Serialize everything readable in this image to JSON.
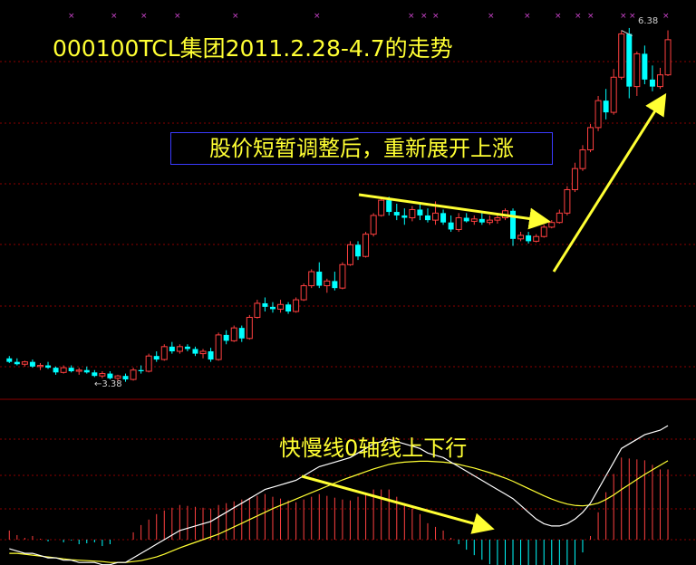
{
  "title": "000100TCL集团2011.2.28-4.7的走势",
  "annotation_trend": "股价短暂调整后，重新展开上涨",
  "annotation_macd": "快慢线0轴线上下行",
  "price_high_label": "6.38",
  "price_low_label": "←3.38",
  "colors": {
    "background": "#000000",
    "up": "#ff4040",
    "down": "#00ffff",
    "text": "#ffff33",
    "grid": "#8b0000",
    "macd_fast": "#ffffff",
    "macd_slow": "#ffff33",
    "markers": "#cc44cc"
  },
  "chart_data": {
    "type": "candlestick",
    "series": [
      {
        "name": "price",
        "candles": [
          [
            3.58,
            3.6,
            3.54,
            3.55
          ],
          [
            3.55,
            3.58,
            3.52,
            3.53
          ],
          [
            3.53,
            3.56,
            3.51,
            3.55
          ],
          [
            3.55,
            3.57,
            3.5,
            3.51
          ],
          [
            3.51,
            3.54,
            3.48,
            3.52
          ],
          [
            3.52,
            3.55,
            3.49,
            3.5
          ],
          [
            3.5,
            3.51,
            3.44,
            3.46
          ],
          [
            3.46,
            3.52,
            3.45,
            3.5
          ],
          [
            3.5,
            3.52,
            3.46,
            3.47
          ],
          [
            3.47,
            3.5,
            3.44,
            3.48
          ],
          [
            3.48,
            3.51,
            3.45,
            3.46
          ],
          [
            3.46,
            3.48,
            3.42,
            3.43
          ],
          [
            3.43,
            3.47,
            3.41,
            3.45
          ],
          [
            3.45,
            3.47,
            3.4,
            3.41
          ],
          [
            3.41,
            3.44,
            3.39,
            3.43
          ],
          [
            3.43,
            3.45,
            3.38,
            3.4
          ],
          [
            3.4,
            3.5,
            3.39,
            3.48
          ],
          [
            3.48,
            3.52,
            3.45,
            3.47
          ],
          [
            3.47,
            3.62,
            3.46,
            3.6
          ],
          [
            3.6,
            3.64,
            3.55,
            3.57
          ],
          [
            3.57,
            3.7,
            3.56,
            3.68
          ],
          [
            3.68,
            3.72,
            3.62,
            3.64
          ],
          [
            3.64,
            3.7,
            3.62,
            3.68
          ],
          [
            3.68,
            3.7,
            3.64,
            3.66
          ],
          [
            3.66,
            3.68,
            3.6,
            3.62
          ],
          [
            3.62,
            3.66,
            3.58,
            3.64
          ],
          [
            3.64,
            3.67,
            3.55,
            3.57
          ],
          [
            3.57,
            3.8,
            3.56,
            3.78
          ],
          [
            3.78,
            3.82,
            3.7,
            3.73
          ],
          [
            3.73,
            3.86,
            3.72,
            3.84
          ],
          [
            3.84,
            3.86,
            3.72,
            3.75
          ],
          [
            3.75,
            3.95,
            3.74,
            3.93
          ],
          [
            3.93,
            4.08,
            3.92,
            4.05
          ],
          [
            4.05,
            4.1,
            3.98,
            4.02
          ],
          [
            4.02,
            4.06,
            3.97,
            4.0
          ],
          [
            4.0,
            4.08,
            3.97,
            4.04
          ],
          [
            4.04,
            4.06,
            3.96,
            3.98
          ],
          [
            3.98,
            4.1,
            3.97,
            4.08
          ],
          [
            4.08,
            4.22,
            4.07,
            4.2
          ],
          [
            4.2,
            4.34,
            4.18,
            4.32
          ],
          [
            4.32,
            4.4,
            4.18,
            4.2
          ],
          [
            4.2,
            4.26,
            4.14,
            4.24
          ],
          [
            4.24,
            4.32,
            4.16,
            4.18
          ],
          [
            4.18,
            4.4,
            4.17,
            4.38
          ],
          [
            4.38,
            4.58,
            4.37,
            4.55
          ],
          [
            4.55,
            4.58,
            4.42,
            4.45
          ],
          [
            4.45,
            4.66,
            4.44,
            4.64
          ],
          [
            4.64,
            4.82,
            4.62,
            4.8
          ],
          [
            4.8,
            4.95,
            4.79,
            4.93
          ],
          [
            4.93,
            4.96,
            4.8,
            4.83
          ],
          [
            4.83,
            4.9,
            4.76,
            4.8
          ],
          [
            4.8,
            4.86,
            4.72,
            4.78
          ],
          [
            4.78,
            4.88,
            4.75,
            4.85
          ],
          [
            4.85,
            4.9,
            4.76,
            4.8
          ],
          [
            4.8,
            4.86,
            4.74,
            4.76
          ],
          [
            4.76,
            4.92,
            4.72,
            4.82
          ],
          [
            4.82,
            4.85,
            4.72,
            4.74
          ],
          [
            4.74,
            4.8,
            4.66,
            4.68
          ],
          [
            4.68,
            4.82,
            4.66,
            4.78
          ],
          [
            4.78,
            4.82,
            4.74,
            4.75
          ],
          [
            4.75,
            4.8,
            4.72,
            4.77
          ],
          [
            4.77,
            4.82,
            4.72,
            4.74
          ],
          [
            4.74,
            4.8,
            4.72,
            4.76
          ],
          [
            4.76,
            4.8,
            4.73,
            4.78
          ],
          [
            4.78,
            4.86,
            4.76,
            4.84
          ],
          [
            4.84,
            4.86,
            4.54,
            4.6
          ],
          [
            4.6,
            4.66,
            4.58,
            4.63
          ],
          [
            4.63,
            4.66,
            4.56,
            4.58
          ],
          [
            4.58,
            4.64,
            4.57,
            4.62
          ],
          [
            4.62,
            4.72,
            4.61,
            4.7
          ],
          [
            4.7,
            4.76,
            4.69,
            4.74
          ],
          [
            4.74,
            4.85,
            4.73,
            4.82
          ],
          [
            4.82,
            5.05,
            4.8,
            5.02
          ],
          [
            5.02,
            5.25,
            5.0,
            5.2
          ],
          [
            5.2,
            5.4,
            5.18,
            5.36
          ],
          [
            5.36,
            5.58,
            5.34,
            5.55
          ],
          [
            5.55,
            5.82,
            5.52,
            5.78
          ],
          [
            5.78,
            5.88,
            5.62,
            5.68
          ],
          [
            5.68,
            6.05,
            5.66,
            5.98
          ],
          [
            5.98,
            6.38,
            5.96,
            6.35
          ],
          [
            6.35,
            6.4,
            5.8,
            5.9
          ],
          [
            5.9,
            6.2,
            5.82,
            6.18
          ],
          [
            6.18,
            6.25,
            5.92,
            5.96
          ],
          [
            5.96,
            6.08,
            5.86,
            5.9
          ],
          [
            5.9,
            6.06,
            5.88,
            6.0
          ],
          [
            6.0,
            6.38,
            5.99,
            6.3
          ]
        ]
      },
      {
        "name": "macd_fast",
        "values": [
          -0.02,
          -0.025,
          -0.03,
          -0.03,
          -0.035,
          -0.04,
          -0.04,
          -0.045,
          -0.045,
          -0.05,
          -0.05,
          -0.05,
          -0.055,
          -0.055,
          -0.05,
          -0.05,
          -0.04,
          -0.03,
          -0.02,
          -0.01,
          0.0,
          0.01,
          0.02,
          0.025,
          0.03,
          0.035,
          0.04,
          0.05,
          0.06,
          0.07,
          0.08,
          0.09,
          0.1,
          0.11,
          0.115,
          0.12,
          0.125,
          0.13,
          0.14,
          0.15,
          0.16,
          0.165,
          0.17,
          0.175,
          0.18,
          0.19,
          0.2,
          0.21,
          0.215,
          0.22,
          0.215,
          0.21,
          0.205,
          0.2,
          0.19,
          0.185,
          0.18,
          0.17,
          0.16,
          0.15,
          0.14,
          0.13,
          0.12,
          0.11,
          0.1,
          0.09,
          0.075,
          0.06,
          0.045,
          0.035,
          0.03,
          0.03,
          0.035,
          0.045,
          0.06,
          0.08,
          0.11,
          0.14,
          0.17,
          0.2,
          0.21,
          0.22,
          0.23,
          0.235,
          0.24,
          0.25
        ]
      },
      {
        "name": "macd_slow",
        "values": [
          -0.03,
          -0.03,
          -0.032,
          -0.034,
          -0.036,
          -0.038,
          -0.04,
          -0.042,
          -0.044,
          -0.045,
          -0.046,
          -0.047,
          -0.048,
          -0.05,
          -0.05,
          -0.05,
          -0.048,
          -0.046,
          -0.042,
          -0.038,
          -0.032,
          -0.025,
          -0.018,
          -0.012,
          -0.006,
          0.0,
          0.006,
          0.012,
          0.02,
          0.028,
          0.036,
          0.044,
          0.052,
          0.06,
          0.068,
          0.075,
          0.082,
          0.089,
          0.096,
          0.103,
          0.11,
          0.117,
          0.124,
          0.131,
          0.137,
          0.143,
          0.149,
          0.155,
          0.16,
          0.165,
          0.168,
          0.17,
          0.171,
          0.172,
          0.172,
          0.171,
          0.17,
          0.168,
          0.165,
          0.161,
          0.157,
          0.152,
          0.147,
          0.141,
          0.135,
          0.128,
          0.12,
          0.112,
          0.104,
          0.096,
          0.089,
          0.083,
          0.078,
          0.075,
          0.074,
          0.076,
          0.08,
          0.088,
          0.098,
          0.11,
          0.121,
          0.132,
          0.143,
          0.153,
          0.163,
          0.173
        ]
      }
    ],
    "ylim_price": [
      3.3,
      6.5
    ],
    "ylim_macd": [
      -0.08,
      0.27
    ]
  }
}
